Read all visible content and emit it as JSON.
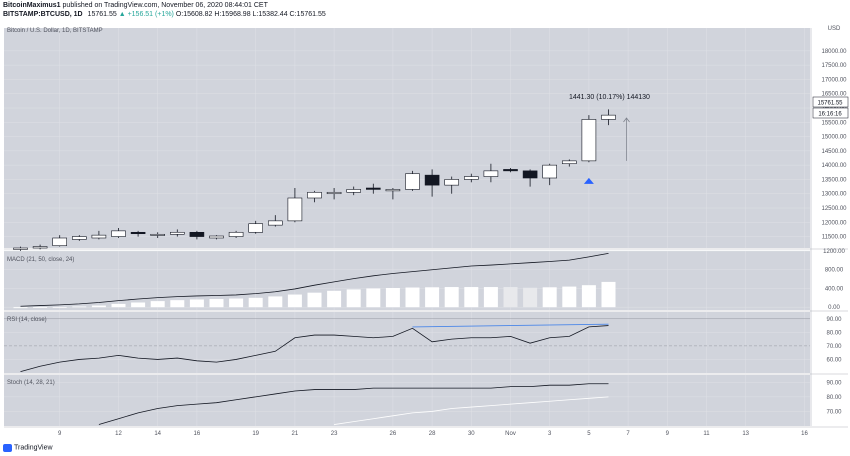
{
  "header": {
    "author": "BitcoinMaximus1",
    "published_text": "published on TradingView.com, November 06, 2020 08:44:01 CET",
    "symbol": "BITSTAMP:BTCUSD, 1D",
    "last": "15761.55",
    "change": "▲ +156.51 (+1%)",
    "open": "O:15608.82",
    "high": "H:15968.98",
    "low": "L:15382.44",
    "close": "C:15761.55"
  },
  "main_pane": {
    "title": "Bitcoin / U.S. Dollar, 1D, BITSTAMP",
    "currency": "USD",
    "price_label": "15761.55",
    "countdown": "16:16:16",
    "measure_label": "1441.30 (10.17%) 144130"
  },
  "indicators": {
    "macd_title": "MACD (21, 50, close, 24)",
    "rsi_title": "RSI (14, close)",
    "stoch_title": "Stoch (14, 28, 21)"
  },
  "footer": {
    "brand": "TradingView"
  },
  "colors": {
    "pane_bg": "#d1d4dc",
    "up_body": "#ffffff",
    "down_body": "#131722",
    "wick": "#131722",
    "rsi_trendline": "#4a86e8",
    "marker": "#2962ff",
    "hist_faded": "#e8e9ec"
  },
  "chart_data": [
    {
      "type": "candlestick",
      "title": "Bitcoin / U.S. Dollar, 1D, BITSTAMP",
      "ylim": [
        11100,
        18800
      ],
      "yticks": [
        11500,
        12000,
        12500,
        13000,
        13500,
        14000,
        14500,
        15000,
        15500,
        16000,
        16500,
        17000,
        17500,
        18000
      ],
      "xtick_labels": [
        {
          "label": "9",
          "idx": 2
        },
        {
          "label": "12",
          "idx": 5
        },
        {
          "label": "14",
          "idx": 7
        },
        {
          "label": "16",
          "idx": 9
        },
        {
          "label": "19",
          "idx": 12
        },
        {
          "label": "21",
          "idx": 14
        },
        {
          "label": "23",
          "idx": 16
        },
        {
          "label": "26",
          "idx": 19
        },
        {
          "label": "28",
          "idx": 21
        },
        {
          "label": "30",
          "idx": 23
        },
        {
          "label": "Nov",
          "idx": 25
        },
        {
          "label": "3",
          "idx": 27
        },
        {
          "label": "5",
          "idx": 29
        },
        {
          "label": "7",
          "idx": 31
        },
        {
          "label": "9",
          "idx": 33
        },
        {
          "label": "11",
          "idx": 35
        },
        {
          "label": "13",
          "idx": 37
        },
        {
          "label": "16",
          "idx": 40
        }
      ],
      "candles": [
        {
          "o": 11050,
          "h": 11150,
          "l": 11000,
          "c": 11100
        },
        {
          "o": 11100,
          "h": 11220,
          "l": 11050,
          "c": 11150
        },
        {
          "o": 11180,
          "h": 11550,
          "l": 11150,
          "c": 11450
        },
        {
          "o": 11400,
          "h": 11550,
          "l": 11350,
          "c": 11500
        },
        {
          "o": 11450,
          "h": 11700,
          "l": 11400,
          "c": 11550
        },
        {
          "o": 11500,
          "h": 11800,
          "l": 11450,
          "c": 11700
        },
        {
          "o": 11650,
          "h": 11700,
          "l": 11500,
          "c": 11600
        },
        {
          "o": 11550,
          "h": 11650,
          "l": 11450,
          "c": 11580
        },
        {
          "o": 11580,
          "h": 11750,
          "l": 11500,
          "c": 11650
        },
        {
          "o": 11650,
          "h": 11700,
          "l": 11400,
          "c": 11500
        },
        {
          "o": 11450,
          "h": 11550,
          "l": 11400,
          "c": 11520
        },
        {
          "o": 11500,
          "h": 11700,
          "l": 11450,
          "c": 11650
        },
        {
          "o": 11650,
          "h": 12050,
          "l": 11600,
          "c": 11950
        },
        {
          "o": 11900,
          "h": 12250,
          "l": 11850,
          "c": 12050
        },
        {
          "o": 12050,
          "h": 13200,
          "l": 12000,
          "c": 12850
        },
        {
          "o": 12850,
          "h": 13100,
          "l": 12700,
          "c": 13050
        },
        {
          "o": 13000,
          "h": 13200,
          "l": 12800,
          "c": 13050
        },
        {
          "o": 13050,
          "h": 13250,
          "l": 12950,
          "c": 13150
        },
        {
          "o": 13200,
          "h": 13350,
          "l": 13000,
          "c": 13150
        },
        {
          "o": 13100,
          "h": 13200,
          "l": 12800,
          "c": 13150
        },
        {
          "o": 13150,
          "h": 13800,
          "l": 13100,
          "c": 13700
        },
        {
          "o": 13650,
          "h": 13850,
          "l": 12900,
          "c": 13300
        },
        {
          "o": 13300,
          "h": 13600,
          "l": 13000,
          "c": 13500
        },
        {
          "o": 13500,
          "h": 13700,
          "l": 13400,
          "c": 13600
        },
        {
          "o": 13600,
          "h": 14050,
          "l": 13400,
          "c": 13800
        },
        {
          "o": 13850,
          "h": 13900,
          "l": 13750,
          "c": 13800
        },
        {
          "o": 13800,
          "h": 13850,
          "l": 13250,
          "c": 13550
        },
        {
          "o": 13550,
          "h": 14050,
          "l": 13300,
          "c": 14000
        },
        {
          "o": 14050,
          "h": 14200,
          "l": 13950,
          "c": 14150
        },
        {
          "o": 14150,
          "h": 15750,
          "l": 14100,
          "c": 15600
        },
        {
          "o": 15600,
          "h": 15950,
          "l": 15400,
          "c": 15750
        }
      ],
      "arrow_from": 14150,
      "arrow_to": 15650,
      "marker_idx": 29,
      "marker_price": 13450
    },
    {
      "type": "line",
      "title": "MACD (21, 50, close, 24)",
      "ylim": [
        -60,
        1200
      ],
      "yticks": [
        0,
        400,
        800,
        1200
      ],
      "ytick_labels": [
        "0.00",
        "400.00",
        "800.00",
        "1200.00"
      ],
      "macd_line": [
        20,
        35,
        50,
        70,
        100,
        140,
        175,
        205,
        225,
        240,
        250,
        262,
        290,
        330,
        390,
        470,
        540,
        610,
        670,
        720,
        760,
        800,
        840,
        880,
        900,
        925,
        950,
        975,
        1005,
        1075,
        1150
      ],
      "histogram": [
        -20,
        -10,
        5,
        15,
        35,
        70,
        100,
        130,
        150,
        165,
        175,
        185,
        200,
        230,
        270,
        310,
        350,
        380,
        400,
        410,
        420,
        425,
        430,
        430,
        430,
        430,
        415,
        425,
        440,
        470,
        540
      ],
      "faded_bars": [
        25,
        26
      ]
    },
    {
      "type": "line",
      "title": "RSI (14, close)",
      "ylim": [
        50,
        95
      ],
      "yticks": [
        60,
        70,
        80,
        90
      ],
      "ytick_labels": [
        "60.00",
        "70.00",
        "80.00",
        "90.00"
      ],
      "values": [
        51,
        55,
        58,
        60,
        61,
        63,
        61,
        60,
        61,
        59,
        58,
        60,
        63,
        66,
        76,
        78,
        78,
        77,
        76,
        77,
        83,
        73,
        75,
        76,
        76,
        77,
        72,
        76,
        77,
        84,
        85
      ],
      "trend_from": {
        "idx": 20,
        "value": 84
      },
      "trend_to": {
        "idx": 30,
        "value": 86
      }
    },
    {
      "type": "line",
      "title": "Stoch (14, 28, 21)",
      "ylim": [
        60,
        95
      ],
      "yticks": [
        70,
        80,
        90
      ],
      "ytick_labels": [
        "70.00",
        "80.00",
        "90.00"
      ],
      "k_start": 4,
      "k": [
        61,
        65,
        69,
        72,
        74,
        75,
        76,
        78,
        80,
        82,
        84,
        85,
        85,
        85,
        86,
        86,
        86,
        86,
        86,
        86,
        86,
        87,
        87,
        88,
        88,
        89,
        89
      ],
      "d_start": 16,
      "d": [
        61,
        63,
        65,
        67,
        69,
        70,
        72,
        73,
        74,
        75,
        76,
        77,
        78,
        79,
        80
      ]
    }
  ]
}
